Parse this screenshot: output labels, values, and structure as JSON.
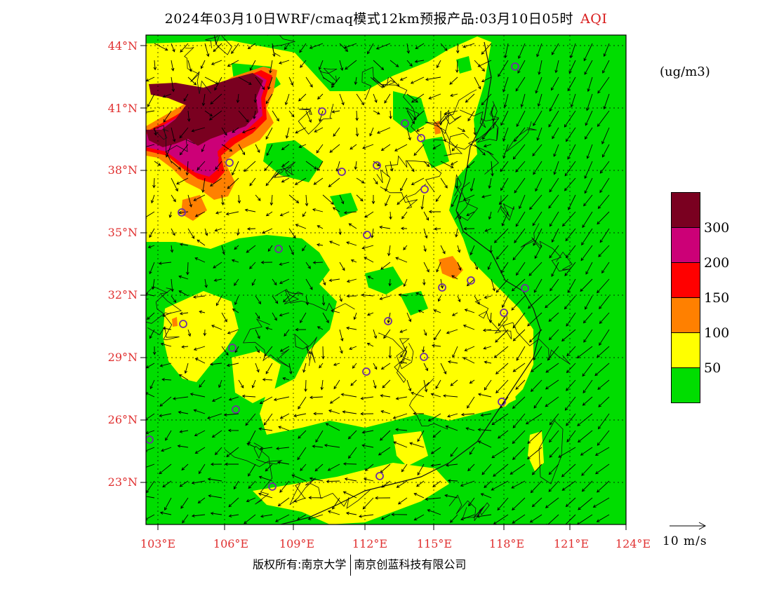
{
  "title": {
    "main": "2024年03月10日WRF/cmaq模式12km预报产品:03月10日05时",
    "variable": "AQI"
  },
  "colors": {
    "good": "#00dd00",
    "moderate": "#ffff00",
    "usg": "#ff8000",
    "unhealthy": "#ff0000",
    "very_unhealthy": "#cc0077",
    "hazardous": "#7a0020",
    "axis_label": "#e03030",
    "city_marker": "#7030a0"
  },
  "map": {
    "lat_ticks": [
      "44°N",
      "41°N",
      "38°N",
      "35°N",
      "32°N",
      "29°N",
      "26°N",
      "23°N"
    ],
    "lon_ticks": [
      "103°E",
      "106°E",
      "109°E",
      "112°E",
      "115°E",
      "118°E",
      "121°E",
      "124°E"
    ]
  },
  "legend": {
    "unit": "(ug/m3)",
    "levels": [
      "300",
      "200",
      "150",
      "100",
      "50"
    ]
  },
  "wind_scale": {
    "label": "10 m/s"
  },
  "footer": {
    "copyright": "版权所有:南京大学",
    "company": "南京创蓝科技有限公司"
  }
}
